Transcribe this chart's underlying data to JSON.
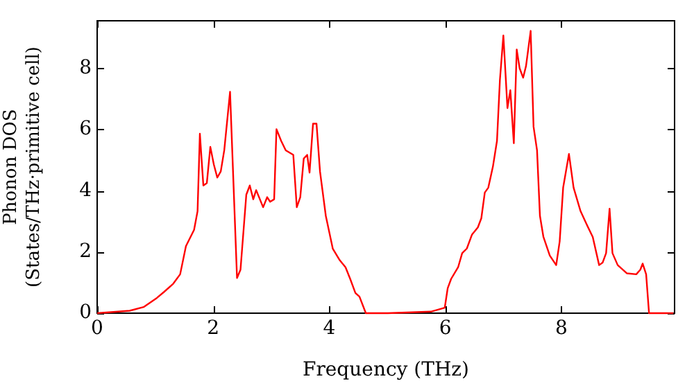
{
  "chart_data": {
    "type": "line",
    "xlabel": "Frequency (THz)",
    "ylabel": "Phonon DOS\n(States/THz·primitive cell)",
    "xlim": [
      0,
      9.95
    ],
    "ylim": [
      0,
      9.55
    ],
    "xticks": [
      0,
      2,
      4,
      6,
      8
    ],
    "yticks": [
      0,
      2,
      4,
      6,
      8
    ],
    "grid": false,
    "legend": false,
    "marker": "none",
    "line_style": "solid",
    "series": [
      {
        "color": "#ff0000",
        "x": [
          0,
          0.56,
          0.8,
          1.03,
          1.15,
          1.31,
          1.43,
          1.53,
          1.67,
          1.73,
          1.77,
          1.83,
          1.89,
          1.95,
          2.01,
          2.07,
          2.13,
          2.19,
          2.29,
          2.41,
          2.47,
          2.57,
          2.63,
          2.69,
          2.74,
          2.86,
          2.93,
          2.98,
          3.05,
          3.09,
          3.17,
          3.25,
          3.38,
          3.44,
          3.5,
          3.56,
          3.62,
          3.66,
          3.72,
          3.78,
          3.84,
          3.94,
          4.06,
          4.18,
          4.28,
          4.36,
          4.45,
          4.52,
          4.63,
          5.01,
          5.75,
          5.99,
          6.04,
          6.1,
          6.22,
          6.29,
          6.37,
          6.46,
          6.56,
          6.62,
          6.68,
          6.74,
          6.82,
          6.89,
          6.94,
          7.0,
          7.07,
          7.12,
          7.18,
          7.23,
          7.28,
          7.34,
          7.39,
          7.47,
          7.52,
          7.58,
          7.63,
          7.69,
          7.8,
          7.91,
          7.97,
          8.03,
          8.13,
          8.21,
          8.33,
          8.45,
          8.54,
          8.65,
          8.71,
          8.77,
          8.83,
          8.88,
          8.97,
          9.13,
          9.29,
          9.36,
          9.4,
          9.46,
          9.51,
          9.93
        ],
        "values": [
          0,
          0.08,
          0.2,
          0.5,
          0.69,
          0.96,
          1.27,
          2.19,
          2.72,
          3.33,
          5.86,
          4.17,
          4.25,
          5.43,
          4.86,
          4.43,
          4.63,
          5.32,
          7.23,
          1.15,
          1.42,
          3.87,
          4.17,
          3.72,
          4.02,
          3.46,
          3.79,
          3.64,
          3.72,
          6.01,
          5.63,
          5.32,
          5.17,
          3.46,
          3.79,
          5.05,
          5.17,
          4.59,
          6.19,
          6.19,
          4.63,
          3.18,
          2.11,
          1.73,
          1.5,
          1.12,
          0.66,
          0.54,
          0,
          0,
          0.05,
          0.18,
          0.81,
          1.12,
          1.5,
          1.96,
          2.11,
          2.57,
          2.8,
          3.1,
          3.94,
          4.1,
          4.79,
          5.63,
          7.61,
          9.07,
          6.7,
          7.28,
          5.55,
          8.61,
          8.0,
          7.69,
          8.07,
          9.22,
          6.09,
          5.32,
          3.18,
          2.49,
          1.88,
          1.57,
          2.34,
          4.1,
          5.2,
          4.1,
          3.33,
          2.84,
          2.49,
          1.57,
          1.65,
          1.96,
          3.41,
          1.96,
          1.57,
          1.3,
          1.27,
          1.42,
          1.62,
          1.27,
          0,
          0
        ]
      }
    ]
  }
}
